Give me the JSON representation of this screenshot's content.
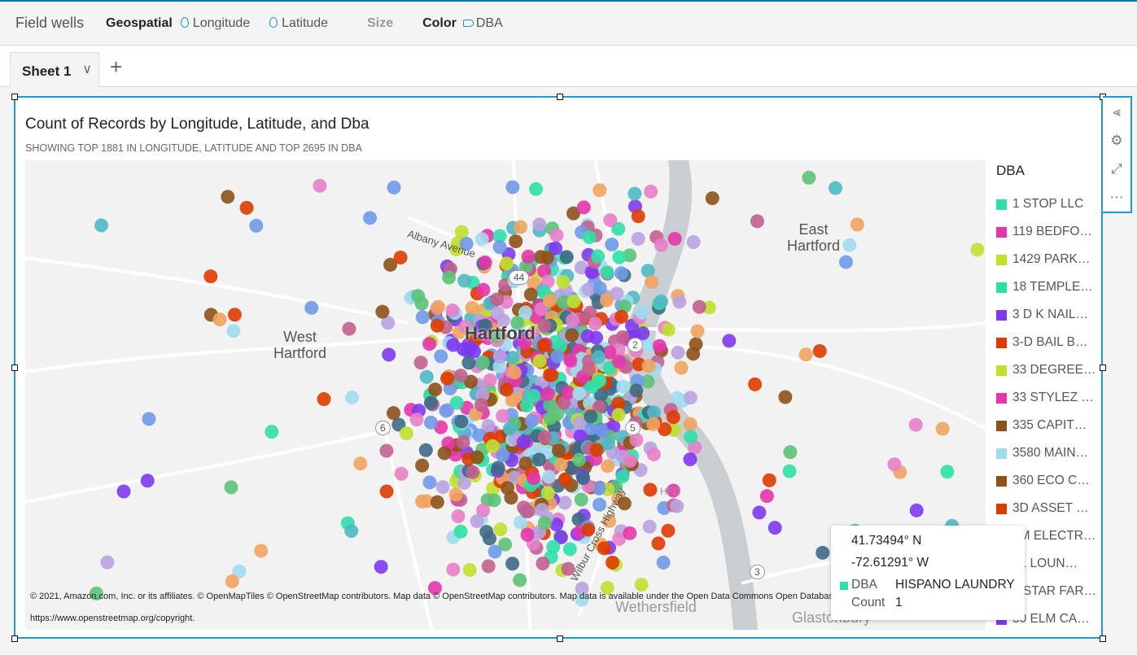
{
  "field_wells": {
    "title": "Field wells",
    "geospatial_label": "Geospatial",
    "longitude": "Longitude",
    "latitude": "Latitude",
    "size_label": "Size",
    "color_label": "Color",
    "color_field": "DBA"
  },
  "sheets": {
    "tab": "Sheet 1",
    "add": "+"
  },
  "visual": {
    "title": "Count of Records by Longitude, Latitude, and Dba",
    "subtitle": "SHOWING TOP 1881 IN LONGITUDE, LATITUDE AND TOP 2695 IN DBA"
  },
  "map": {
    "labels": {
      "hartford": "Hartford",
      "west_hartford": "West\nHartford",
      "east_hartford": "East\nHartford",
      "wethersfield": "Wethersfield",
      "glastonbury": "Glastonbury",
      "albany": "Albany Avenue",
      "wilbur": "Wilbur Cross Highway",
      "hfd": "HFD"
    },
    "shields": [
      "44",
      "2",
      "6",
      "5",
      "3"
    ],
    "attribution": "© 2021, Amazon.com, Inc. or its affiliates. © OpenMapTiles © OpenStreetMap contributors. Map data © OpenStreetMap contributors. Map data is available under the Open Data Commons Open Database License",
    "attribution_link": "https://www.openstreetmap.org/copyright."
  },
  "legend": {
    "title": "DBA",
    "items": [
      {
        "label": "1 STOP LLC",
        "color": "#2de0a7"
      },
      {
        "label": "119 BEDFO…",
        "color": "#e535ab"
      },
      {
        "label": "1429 PARK…",
        "color": "#bfe02d"
      },
      {
        "label": "18 TEMPLE…",
        "color": "#2de0a7"
      },
      {
        "label": "3 D K NAIL…",
        "color": "#7d3af0"
      },
      {
        "label": "3-D BAIL B…",
        "color": "#de3b00"
      },
      {
        "label": "33 DEGREE…",
        "color": "#bfe02d"
      },
      {
        "label": "33 STYLEZ …",
        "color": "#e535ab"
      },
      {
        "label": "335 CAPIT…",
        "color": "#8e5219"
      },
      {
        "label": "3580 MAIN…",
        "color": "#a0dcf0"
      },
      {
        "label": "360 ECO C…",
        "color": "#8e5219"
      },
      {
        "label": "3D ASSET …",
        "color": "#de3b00"
      },
      {
        "label": "4M ELECTR…",
        "color": "#2de0a7"
      },
      {
        "label": "41 LOUN…",
        "color": "#e535ab"
      },
      {
        "label": "5 STAR FAR…",
        "color": "#bfe02d"
      },
      {
        "label": "50 ELM CA…",
        "color": "#7d3af0"
      }
    ]
  },
  "tooltip": {
    "lat": "41.73494° N",
    "lon": "-72.61291° W",
    "dba_label": "DBA",
    "dba_value": "HISPANO LAUNDRY",
    "count_label": "Count",
    "count_value": "1",
    "color": "#2de0a7"
  },
  "dot_colors": [
    "#2de0a7",
    "#e535ab",
    "#bfe02d",
    "#7d3af0",
    "#de3b00",
    "#8e5219",
    "#a0dcf0",
    "#3e6a85",
    "#f0a35e",
    "#6f9ae8",
    "#c2608f",
    "#4fb9c3",
    "#b9a3e0",
    "#5cc278",
    "#e77fc8"
  ]
}
